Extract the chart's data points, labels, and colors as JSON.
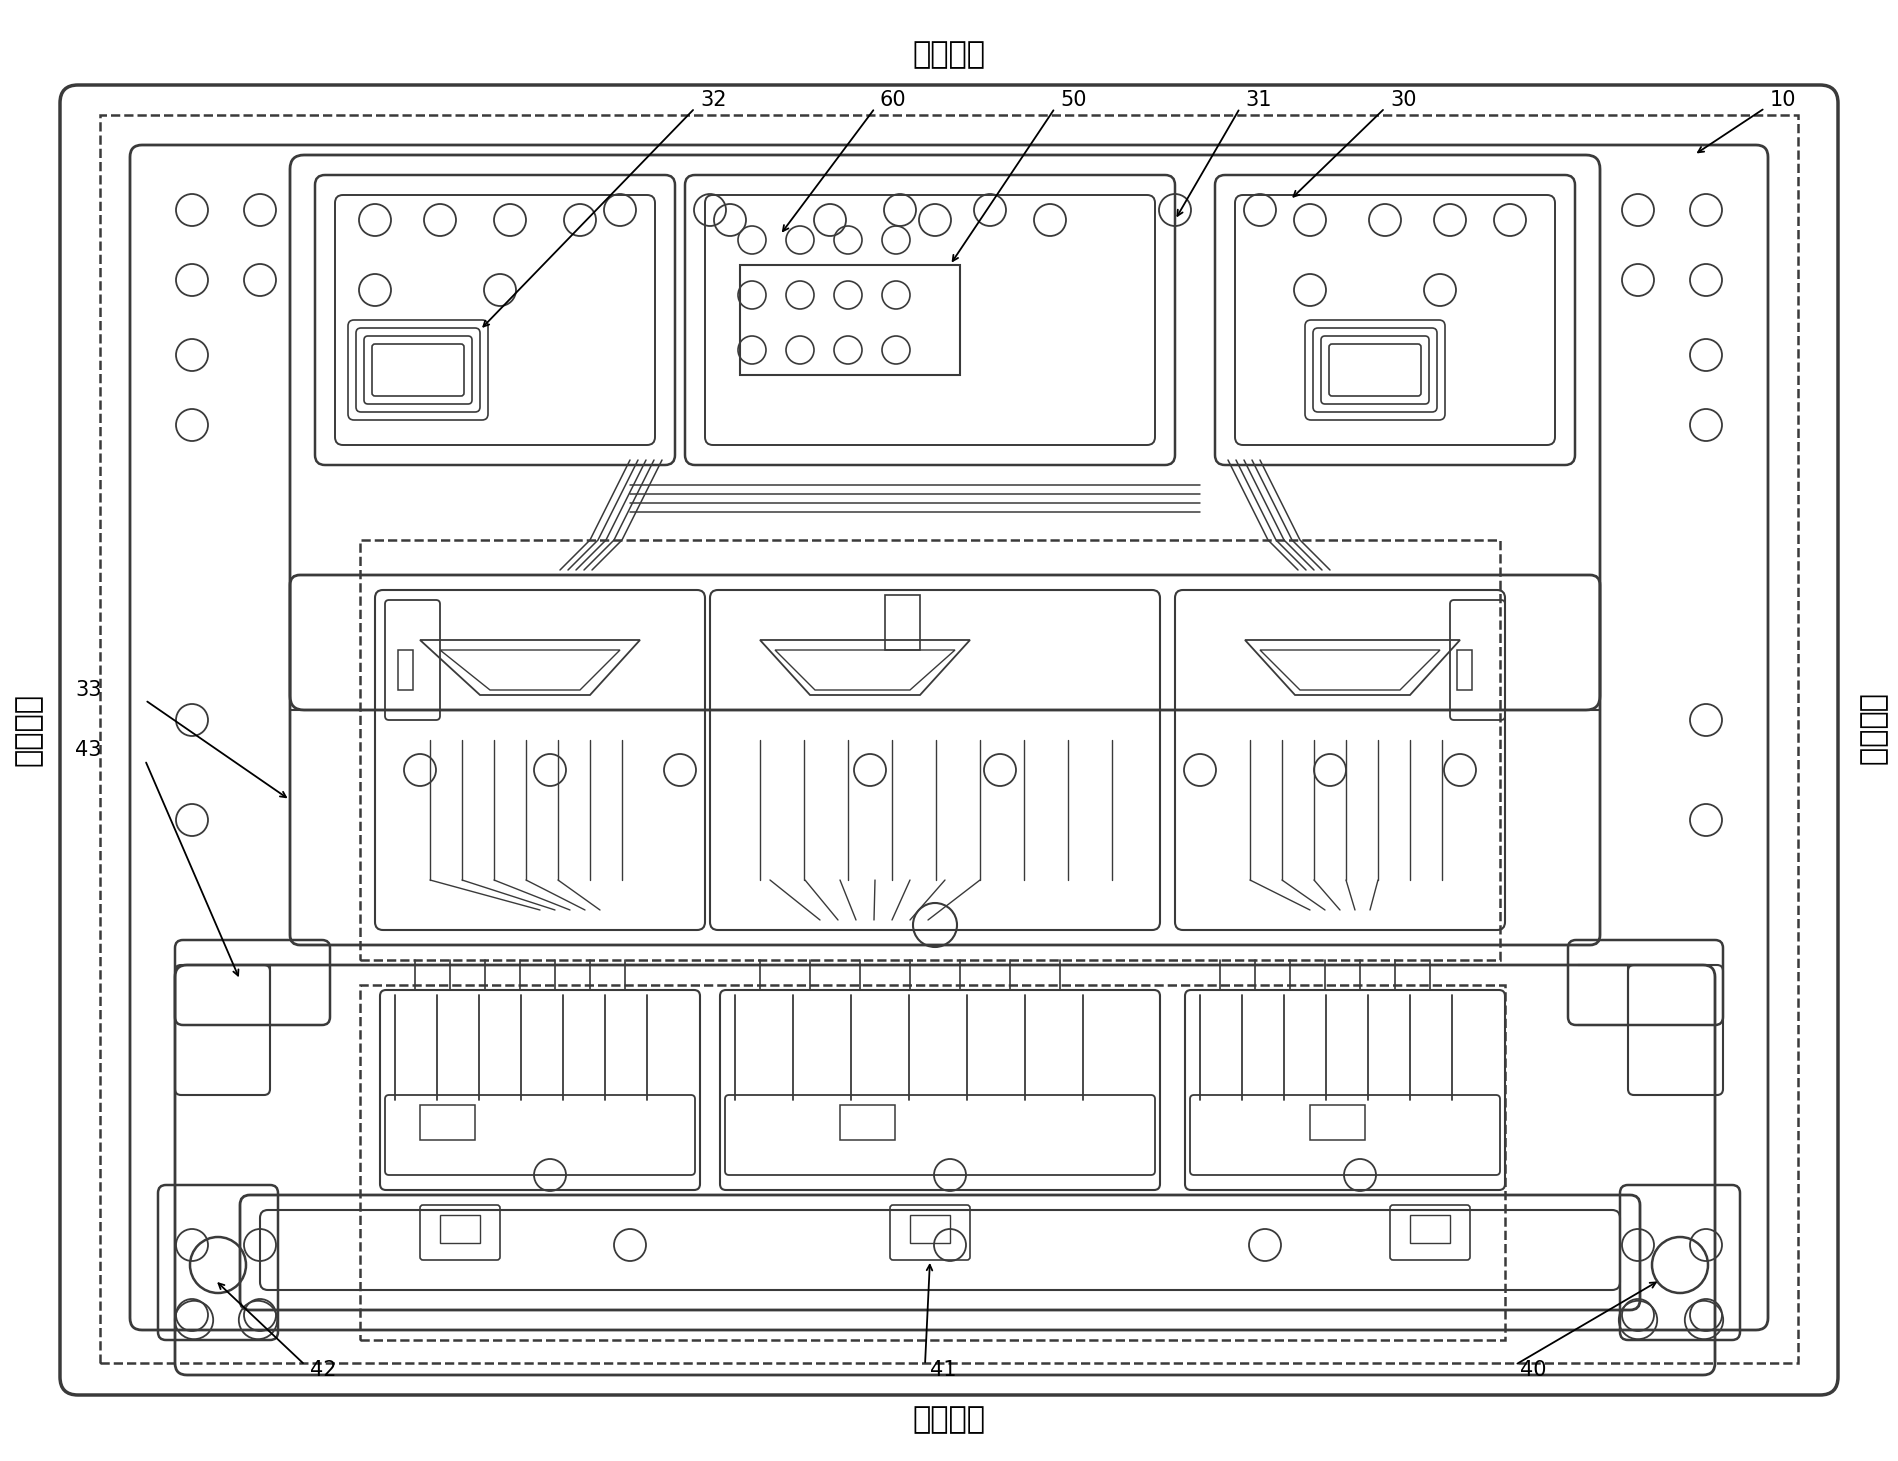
{
  "bg_color": "#ffffff",
  "line_color": "#3a3a3a",
  "label_color": "#000000",
  "fig_width": 18.98,
  "fig_height": 14.61,
  "labels": {
    "top": "第一侧边",
    "bottom": "第二侧边",
    "left": "第三侧边",
    "right": "第四侧边"
  }
}
